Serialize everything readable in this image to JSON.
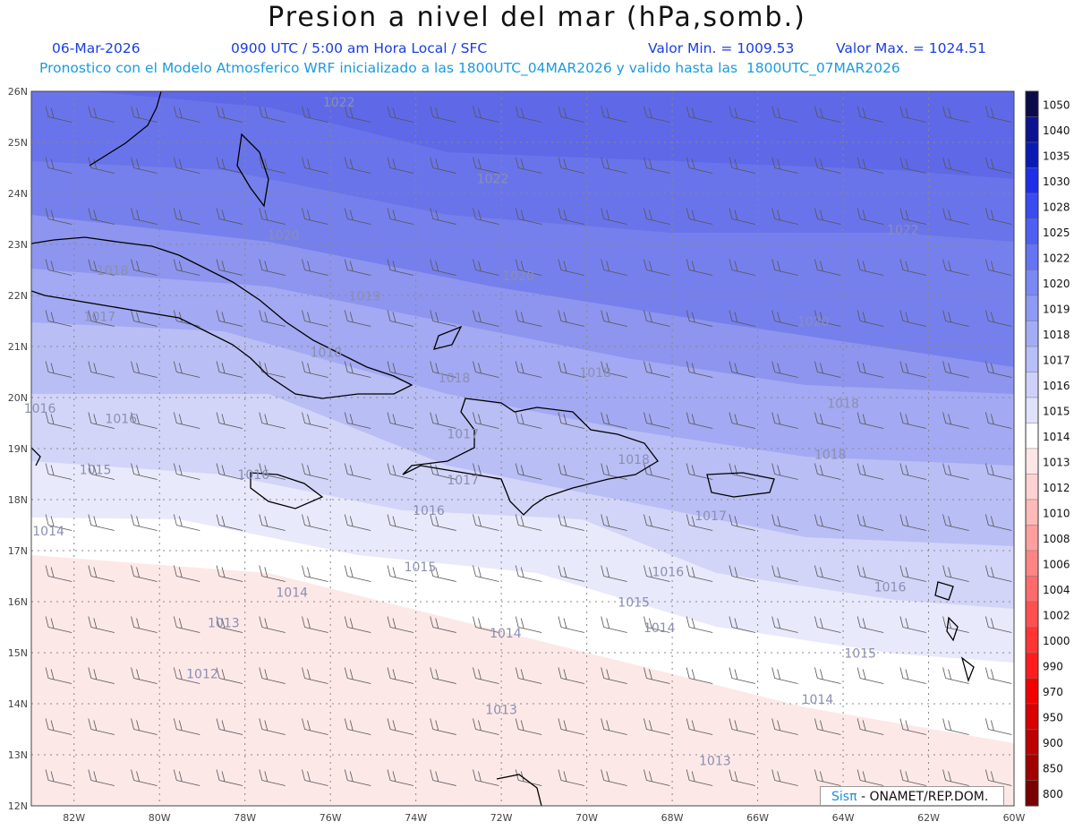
{
  "header": {
    "title": "Presion a nivel del mar (hPa,somb.)",
    "date": "06-Mar-2026",
    "time": "0900 UTC / 5:00 am Hora Local / SFC",
    "min_label": "Valor Min. = 1009.53",
    "max_label": "Valor Max. = 1024.51",
    "model_line": "Pronostico con el Modelo Atmosferico WRF inicializado a las 1800UTC_04MAR2026 y valido hasta las  1800UTC_07MAR2026"
  },
  "credit": {
    "brand": "Sisπ",
    "text": " - ONAMET/REP.DOM."
  },
  "map": {
    "lat_labels": [
      "26N",
      "25N",
      "24N",
      "23N",
      "22N",
      "21N",
      "20N",
      "19N",
      "18N",
      "17N",
      "16N",
      "15N",
      "14N",
      "13N",
      "12N"
    ],
    "lon_labels": [
      "82W",
      "80W",
      "78W",
      "76W",
      "74W",
      "72W",
      "70W",
      "68W",
      "66W",
      "64W",
      "62W",
      "60W"
    ],
    "contour_labels": [
      {
        "text": "1022",
        "lon": -75.8,
        "lat": 25.7
      },
      {
        "text": "1022",
        "lon": -72.2,
        "lat": 24.2
      },
      {
        "text": "1022",
        "lon": -62.6,
        "lat": 23.2
      },
      {
        "text": "1020",
        "lon": -77.1,
        "lat": 23.1
      },
      {
        "text": "1020",
        "lon": -71.6,
        "lat": 22.3
      },
      {
        "text": "1020",
        "lon": -64.7,
        "lat": 21.4
      },
      {
        "text": "1018",
        "lon": -81.1,
        "lat": 22.4
      },
      {
        "text": "1019",
        "lon": -75.2,
        "lat": 21.9
      },
      {
        "text": "1017",
        "lon": -81.4,
        "lat": 21.5
      },
      {
        "text": "1018",
        "lon": -76.1,
        "lat": 20.8
      },
      {
        "text": "1018",
        "lon": -73.1,
        "lat": 20.3
      },
      {
        "text": "1018",
        "lon": -69.8,
        "lat": 20.4
      },
      {
        "text": "1018",
        "lon": -64.0,
        "lat": 19.8
      },
      {
        "text": "1016",
        "lon": -82.8,
        "lat": 19.7
      },
      {
        "text": "1016",
        "lon": -80.9,
        "lat": 19.5
      },
      {
        "text": "1017",
        "lon": -72.9,
        "lat": 19.2
      },
      {
        "text": "1018",
        "lon": -68.9,
        "lat": 18.7
      },
      {
        "text": "1018",
        "lon": -64.3,
        "lat": 18.8
      },
      {
        "text": "1016",
        "lon": -77.8,
        "lat": 18.4
      },
      {
        "text": "1015",
        "lon": -81.5,
        "lat": 18.5
      },
      {
        "text": "1017",
        "lon": -72.9,
        "lat": 18.3
      },
      {
        "text": "1016",
        "lon": -73.7,
        "lat": 17.7
      },
      {
        "text": "1017",
        "lon": -67.1,
        "lat": 17.6
      },
      {
        "text": "1014",
        "lon": -82.6,
        "lat": 17.3
      },
      {
        "text": "1015",
        "lon": -73.9,
        "lat": 16.6
      },
      {
        "text": "1016",
        "lon": -68.1,
        "lat": 16.5
      },
      {
        "text": "1016",
        "lon": -62.9,
        "lat": 16.2
      },
      {
        "text": "1014",
        "lon": -76.9,
        "lat": 16.1
      },
      {
        "text": "1015",
        "lon": -68.9,
        "lat": 15.9
      },
      {
        "text": "1013",
        "lon": -78.5,
        "lat": 15.5
      },
      {
        "text": "1014",
        "lon": -71.9,
        "lat": 15.3
      },
      {
        "text": "1014",
        "lon": -68.3,
        "lat": 15.4
      },
      {
        "text": "1015",
        "lon": -63.6,
        "lat": 14.9
      },
      {
        "text": "1012",
        "lon": -79.0,
        "lat": 14.5
      },
      {
        "text": "1014",
        "lon": -64.6,
        "lat": 14.0
      },
      {
        "text": "1013",
        "lon": -72.0,
        "lat": 13.8
      },
      {
        "text": "1013",
        "lon": -67.0,
        "lat": 12.8
      }
    ]
  },
  "colorbar": {
    "levels": [
      "1050",
      "1040",
      "1035",
      "1030",
      "1028",
      "1025",
      "1022",
      "1020",
      "1019",
      "1018",
      "1017",
      "1016",
      "1015",
      "1014",
      "1013",
      "1012",
      "1010",
      "1008",
      "1006",
      "1004",
      "1002",
      "1000",
      "990",
      "970",
      "950",
      "900",
      "850",
      "800"
    ],
    "colors": [
      "#0b0b4a",
      "#0d1290",
      "#0a1bb4",
      "#1f2ee8",
      "#3a4bf0",
      "#4f5ff2",
      "#6673f2",
      "#7b87f2",
      "#9099f4",
      "#a5acf6",
      "#b8bef8",
      "#cdd1fa",
      "#e0e2fc",
      "#ffffff",
      "#ffe6e6",
      "#ffd2d2",
      "#ffbaba",
      "#ff9f9f",
      "#ff8585",
      "#ff6b6b",
      "#ff5050",
      "#ff3535",
      "#ff1c1c",
      "#f20000",
      "#d80000",
      "#bd0000",
      "#a00000",
      "#7a0000"
    ]
  }
}
